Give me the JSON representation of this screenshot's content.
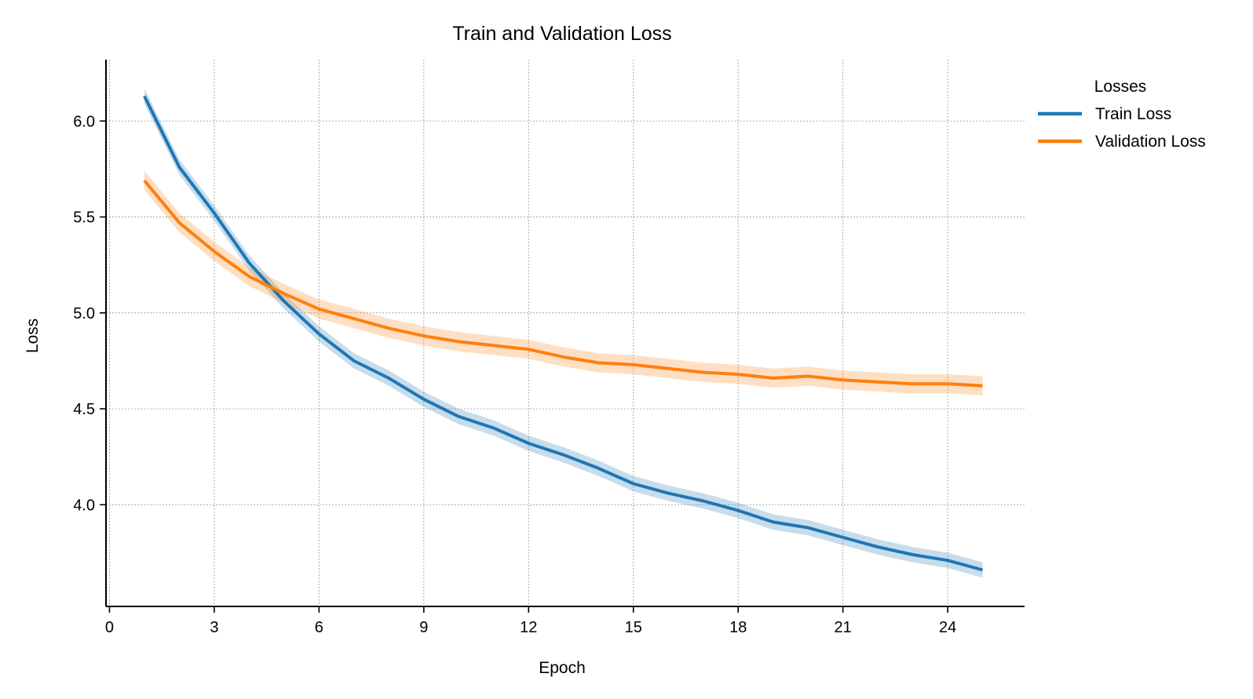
{
  "chart_data": {
    "type": "line",
    "title": "Train and Validation Loss",
    "xlabel": "Epoch",
    "ylabel": "Loss",
    "xlim": [
      -0.1,
      26.2
    ],
    "ylim": [
      3.47,
      6.32
    ],
    "xticks": [
      0,
      3,
      6,
      9,
      12,
      15,
      18,
      21,
      24
    ],
    "yticks": [
      4.0,
      4.5,
      5.0,
      5.5,
      6.0
    ],
    "grid": true,
    "legend": {
      "title": "Losses",
      "placement": "outside-top-right"
    },
    "x": [
      1,
      2,
      3,
      4,
      5,
      6,
      7,
      8,
      9,
      10,
      11,
      12,
      13,
      14,
      15,
      16,
      17,
      18,
      19,
      20,
      21,
      22,
      23,
      24,
      25
    ],
    "series": [
      {
        "name": "Train Loss",
        "color": "#1f77b4",
        "band": 0.04,
        "values": [
          6.13,
          5.76,
          5.52,
          5.26,
          5.06,
          4.89,
          4.75,
          4.66,
          4.55,
          4.46,
          4.4,
          4.32,
          4.26,
          4.19,
          4.11,
          4.06,
          4.02,
          3.97,
          3.91,
          3.88,
          3.83,
          3.78,
          3.74,
          3.71,
          3.66
        ]
      },
      {
        "name": "Validation Loss",
        "color": "#ff7f0e",
        "band": 0.05,
        "values": [
          5.69,
          5.47,
          5.32,
          5.19,
          5.1,
          5.02,
          4.97,
          4.92,
          4.88,
          4.85,
          4.83,
          4.81,
          4.77,
          4.74,
          4.73,
          4.71,
          4.69,
          4.68,
          4.66,
          4.67,
          4.65,
          4.64,
          4.63,
          4.63,
          4.62
        ]
      }
    ]
  }
}
